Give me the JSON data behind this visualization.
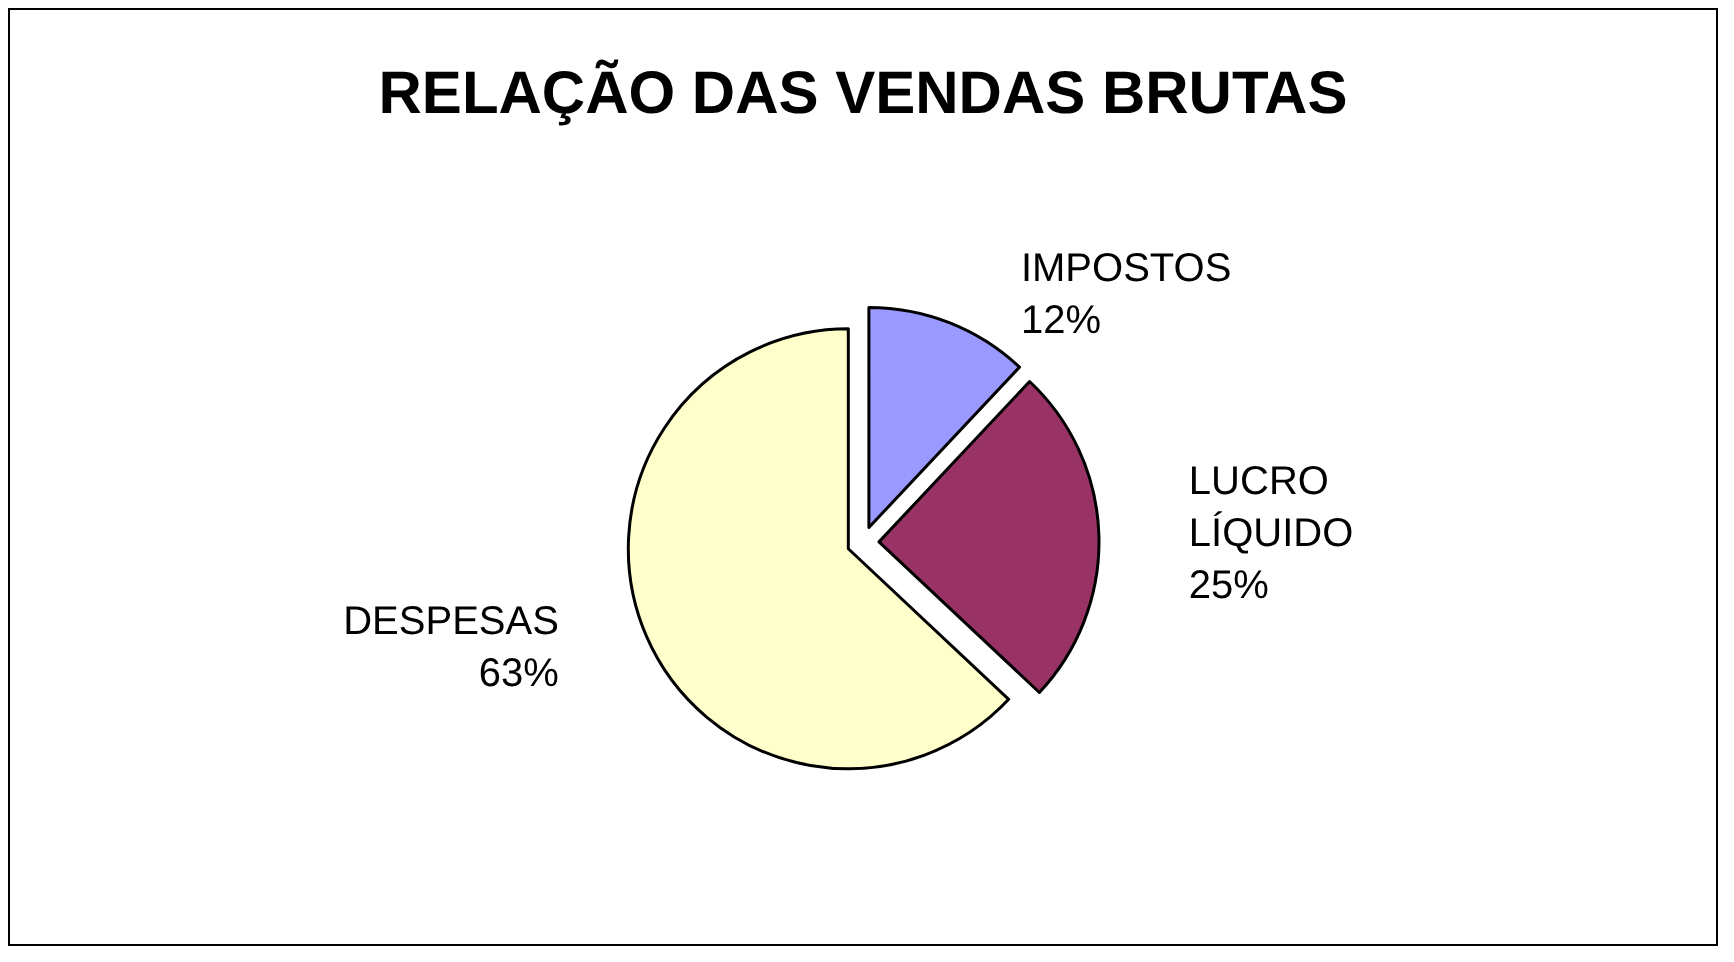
{
  "chart_data": {
    "type": "pie",
    "title": "RELAÇÃO DAS VENDAS BRUTAS",
    "categories": [
      "IMPOSTOS",
      "LUCRO LÍQUIDO",
      "DESPESAS"
    ],
    "values": [
      12,
      25,
      63
    ],
    "value_labels": [
      "12%",
      "25%",
      "63%"
    ],
    "colors": [
      "#9999ff",
      "#993366",
      "#ffffcc"
    ],
    "legend": false
  }
}
